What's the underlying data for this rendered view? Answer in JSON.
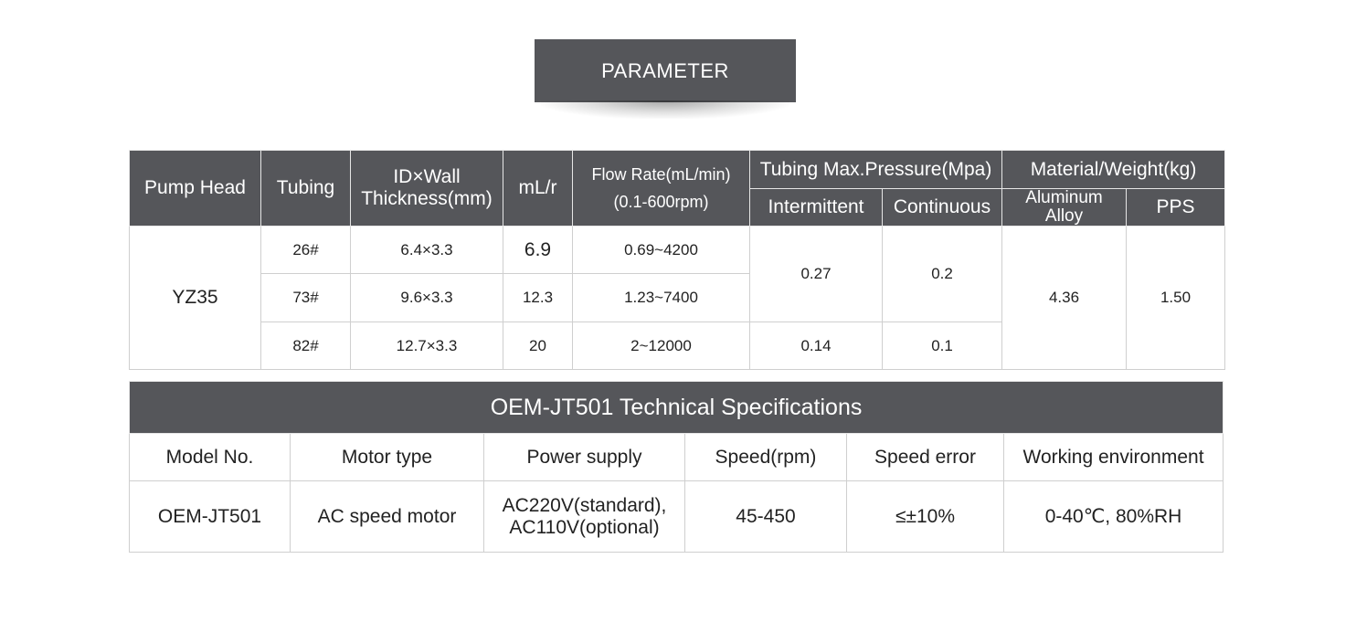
{
  "banner": {
    "title": "PARAMETER"
  },
  "pump_table": {
    "headers": {
      "pump_head": "Pump Head",
      "tubing": "Tubing",
      "id_wall_line1": "ID×Wall",
      "id_wall_line2": "Thickness(mm)",
      "ml_r": "mL/r",
      "flow_rate_line1": "Flow Rate(mL/min)",
      "flow_rate_line2": "(0.1-600rpm)",
      "pressure": "Tubing Max.Pressure(Mpa)",
      "intermittent": "Intermittent",
      "continuous": "Continuous",
      "material": "Material/Weight(kg)",
      "aluminum_line1": "Aluminum",
      "aluminum_line2": "Alloy",
      "pps": "PPS"
    },
    "pump_head": "YZ35",
    "rows": [
      {
        "tubing": "26#",
        "id_wall": "6.4×3.3",
        "ml_r": "6.9",
        "flow_rate": "0.69~4200"
      },
      {
        "tubing": "73#",
        "id_wall": "9.6×3.3",
        "ml_r": "12.3",
        "flow_rate": "1.23~7400"
      },
      {
        "tubing": "82#",
        "id_wall": "12.7×3.3",
        "ml_r": "20",
        "flow_rate": "2~12000"
      }
    ],
    "pressure_group1": {
      "intermittent": "0.27",
      "continuous": "0.2"
    },
    "pressure_group2": {
      "intermittent": "0.14",
      "continuous": "0.1"
    },
    "weights": {
      "aluminum_alloy": "4.36",
      "pps": "1.50"
    }
  },
  "spec_table": {
    "title": "OEM-JT501 Technical Specifications",
    "headers": [
      "Model No.",
      "Motor type",
      "Power supply",
      "Speed(rpm)",
      "Speed error",
      "Working environment"
    ],
    "row": {
      "model": "OEM-JT501",
      "motor": "AC speed motor",
      "power_line1": "AC220V(standard),",
      "power_line2": "AC110V(optional)",
      "speed": "45-450",
      "speed_error": "≤±10%",
      "environment": "0-40℃, 80%RH"
    }
  }
}
